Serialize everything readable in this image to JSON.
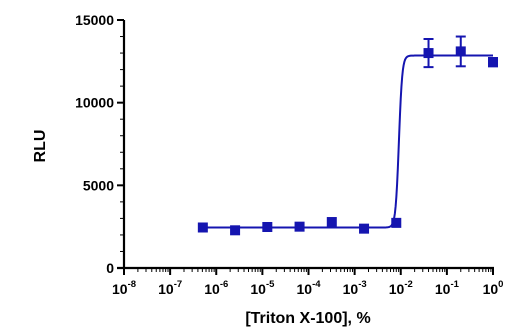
{
  "chart_data": {
    "type": "scatter",
    "xlabel": "[Triton X-100], %",
    "ylabel": "RLU",
    "x_scale": "log10",
    "xlim": [
      1e-08,
      1
    ],
    "ylim": [
      0,
      15000
    ],
    "x_ticks": [
      {
        "value": 1e-08,
        "base": "10",
        "exp": "-8"
      },
      {
        "value": 1e-07,
        "base": "10",
        "exp": "-7"
      },
      {
        "value": 1e-06,
        "base": "10",
        "exp": "-6"
      },
      {
        "value": 1e-05,
        "base": "10",
        "exp": "-5"
      },
      {
        "value": 0.0001,
        "base": "10",
        "exp": "-4"
      },
      {
        "value": 0.001,
        "base": "10",
        "exp": "-3"
      },
      {
        "value": 0.01,
        "base": "10",
        "exp": "-2"
      },
      {
        "value": 0.1,
        "base": "10",
        "exp": "-1"
      },
      {
        "value": 1,
        "base": "10",
        "exp": "0"
      }
    ],
    "y_ticks": [
      {
        "value": 0,
        "label": "0"
      },
      {
        "value": 5000,
        "label": "5000"
      },
      {
        "value": 10000,
        "label": "10000"
      },
      {
        "value": 15000,
        "label": "15000"
      }
    ],
    "grid": false,
    "series": [
      {
        "marker": "square",
        "color": "#1515b0",
        "points": [
          {
            "x": 5.12e-07,
            "y": 2450,
            "err": 0
          },
          {
            "x": 2.56e-06,
            "y": 2280,
            "err": 0
          },
          {
            "x": 1.28e-05,
            "y": 2480,
            "err": 0
          },
          {
            "x": 6.4e-05,
            "y": 2500,
            "err": 0
          },
          {
            "x": 0.00032,
            "y": 2780,
            "err": 0
          },
          {
            "x": 0.0016,
            "y": 2380,
            "err": 0
          },
          {
            "x": 0.008,
            "y": 2730,
            "err": 0
          },
          {
            "x": 0.04,
            "y": 13000,
            "err": 850
          },
          {
            "x": 0.2,
            "y": 13100,
            "err": 900
          },
          {
            "x": 1,
            "y": 12450,
            "err": 250
          }
        ]
      }
    ],
    "fit": {
      "model": "sigmoidal",
      "bottom": 2450,
      "top": 12850,
      "log_ec50": -2.04,
      "hill_slope": 12,
      "x_range": [
        5e-07,
        1
      ]
    }
  }
}
